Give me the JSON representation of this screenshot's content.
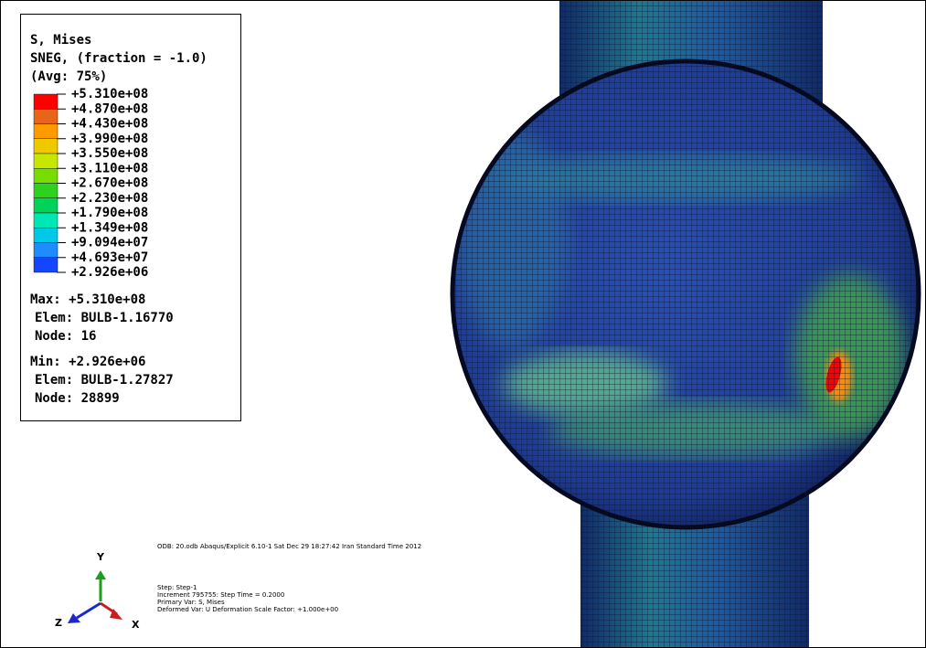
{
  "legend": {
    "title": [
      "S, Mises",
      "SNEG, (fraction = -1.0)",
      "(Avg: 75%)"
    ],
    "levels": [
      "+5.310e+08",
      "+4.870e+08",
      "+4.430e+08",
      "+3.990e+08",
      "+3.550e+08",
      "+3.110e+08",
      "+2.670e+08",
      "+2.230e+08",
      "+1.790e+08",
      "+1.349e+08",
      "+9.094e+07",
      "+4.693e+07",
      "+2.926e+06"
    ],
    "colors": [
      "#ff0000",
      "#e8641a",
      "#ff9a00",
      "#f0c800",
      "#c8e600",
      "#78dc00",
      "#2ed21e",
      "#00d25a",
      "#00e6b4",
      "#00c8e6",
      "#1e8cff",
      "#1446ff",
      "#0000ff"
    ],
    "max": [
      "Max: +5.310e+08",
      "Elem: BULB-1.16770",
      "Node: 16"
    ],
    "min": [
      "Min: +2.926e+06",
      "Elem: BULB-1.27827",
      "Node: 28899"
    ]
  },
  "info": {
    "odb": "ODB: 20.odb    Abaqus/Explicit 6.10-1    Sat Dec 29 18:27:42 Iran Standard Time 2012",
    "step": [
      "Step: Step-1",
      "Increment    795755: Step Time =    0.2000",
      "Primary Var: S, Mises",
      "Deformed Var: U   Deformation Scale Factor: +1.000e+00"
    ]
  },
  "triad": {
    "y": "Y",
    "z": "Z",
    "x": "X"
  }
}
